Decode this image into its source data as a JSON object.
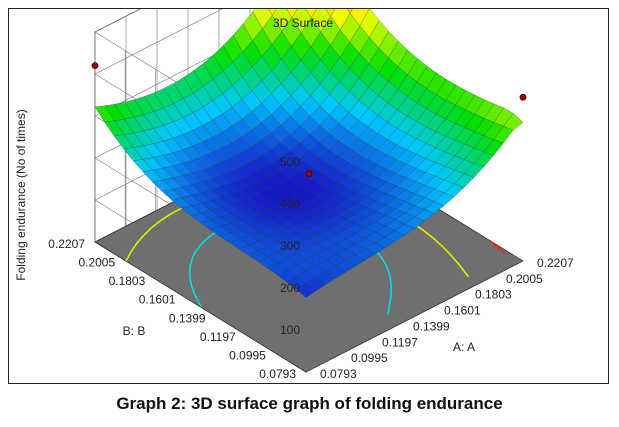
{
  "chart_data": {
    "type": "surface",
    "title": "3D Surface",
    "zlabel": "Folding endurance (No of times)",
    "xlabel": "A: A",
    "ylabel": "B: B",
    "x_ticks": [
      "0.0793",
      "0.0995",
      "0.1197",
      "0.1399",
      "0.1601",
      "0.1803",
      "0.2005",
      "0.2207"
    ],
    "y_ticks": [
      "0.0793",
      "0.0995",
      "0.1197",
      "0.1399",
      "0.1601",
      "0.1803",
      "0.2005",
      "0.2207"
    ],
    "z_ticks": [
      "100",
      "200",
      "300",
      "400",
      "500"
    ],
    "xlim": [
      0.0793,
      0.2207
    ],
    "ylim": [
      0.0793,
      0.2207
    ],
    "zlim": [
      0,
      500
    ],
    "surface": {
      "min": 170,
      "min_at": [
        0.135,
        0.15
      ],
      "corners": {
        "x_low_y_low": 180,
        "x_high_y_low": 330,
        "x_low_y_high": 380,
        "x_high_y_high": 490
      }
    },
    "design_points": [
      {
        "x": 0.2207,
        "y": 0.2207,
        "z": 485
      },
      {
        "x": 0.2207,
        "y": 0.0793,
        "z": 390
      },
      {
        "x": 0.0793,
        "y": 0.2207,
        "z": 420
      },
      {
        "x": 0.15,
        "y": 0.15,
        "z": 185
      }
    ],
    "colormap": [
      "#1515c8",
      "#00c8ff",
      "#00e000",
      "#ffff00",
      "#ff8000",
      "#e00000"
    ],
    "contour_plane": true
  },
  "caption": "Graph 2: 3D surface graph of folding endurance"
}
